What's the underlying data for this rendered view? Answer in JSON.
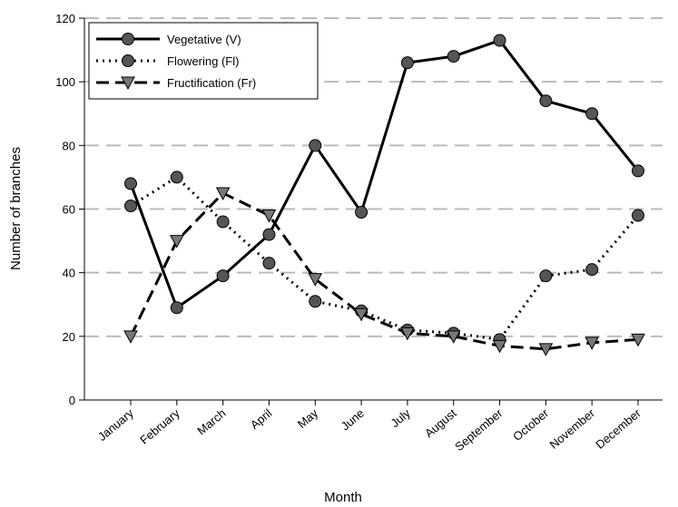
{
  "chart_data": {
    "type": "line",
    "x_label": "Month",
    "y_label": "Number of branches",
    "categories": [
      "January",
      "February",
      "March",
      "April",
      "May",
      "June",
      "July",
      "August",
      "September",
      "October",
      "November",
      "December"
    ],
    "series": [
      {
        "name": "Vegetative (V)",
        "color": "#000000",
        "marker_color": "#555555",
        "linestyle": "solid",
        "marker": "circle",
        "values": [
          68,
          29,
          39,
          52,
          80,
          59,
          106,
          108,
          113,
          94,
          90,
          72
        ]
      },
      {
        "name": "Flowering (Fl)",
        "color": "#000000",
        "marker_color": "#555555",
        "linestyle": "dotted",
        "marker": "circle",
        "values": [
          61,
          70,
          56,
          43,
          31,
          28,
          22,
          21,
          19,
          39,
          41,
          58
        ]
      },
      {
        "name": "Fructification (Fr)",
        "color": "#000000",
        "marker_color": "#777777",
        "linestyle": "dashed",
        "marker": "triangle-down",
        "values": [
          20,
          50,
          65,
          58,
          38,
          27,
          21,
          20,
          17,
          16,
          18,
          19
        ]
      }
    ],
    "ylim": [
      0,
      120
    ],
    "yticks": [
      0,
      20,
      40,
      60,
      80,
      100,
      120
    ],
    "grid": true,
    "legend": "upper left"
  }
}
